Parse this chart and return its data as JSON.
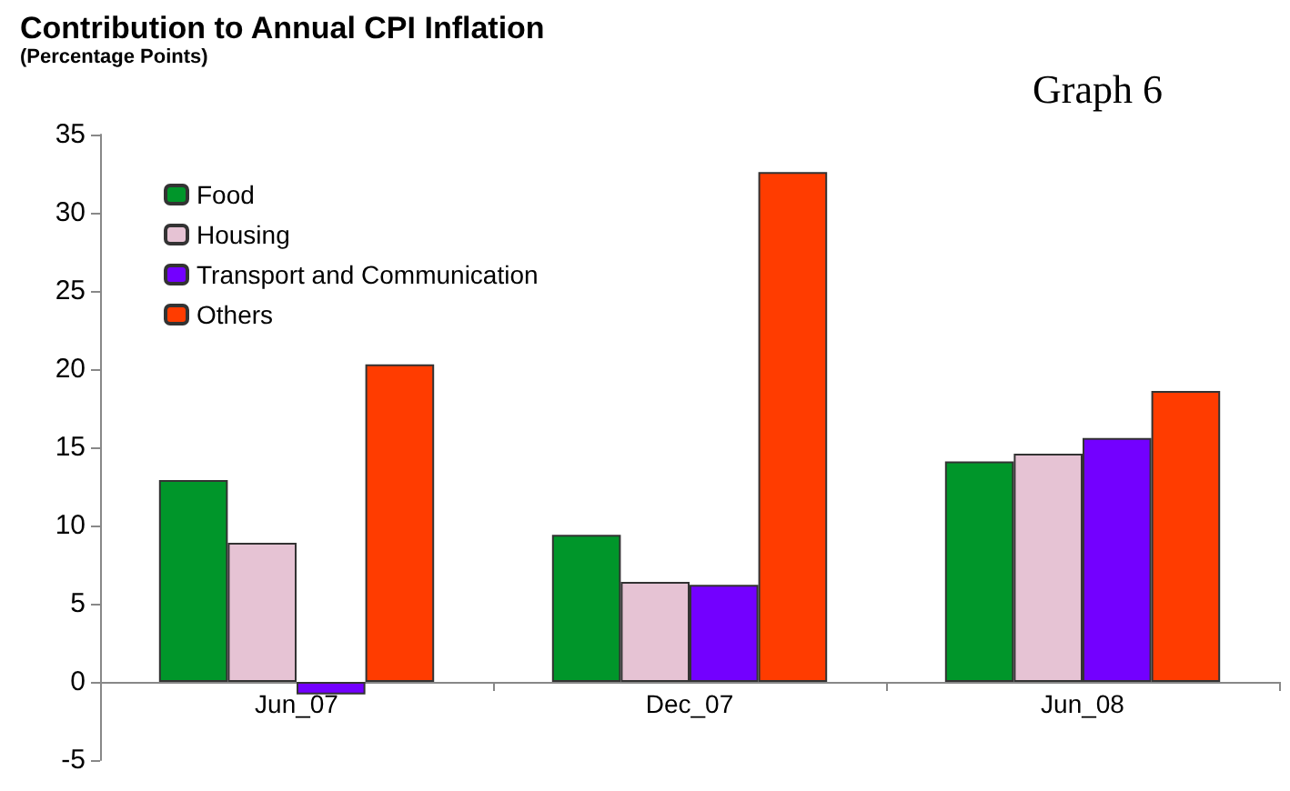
{
  "chart_data": {
    "type": "bar",
    "title": "Contribution to Annual CPI Inflation",
    "subtitle": "(Percentage Points)",
    "annotations": [
      "Graph 6"
    ],
    "categories": [
      "Jun_07",
      "Dec_07",
      "Jun_08"
    ],
    "series": [
      {
        "name": "Food",
        "color": "#00962a",
        "values": [
          12.9,
          9.4,
          14.1
        ]
      },
      {
        "name": "Housing",
        "color": "#e6c3d4",
        "values": [
          8.9,
          6.4,
          14.6
        ]
      },
      {
        "name": "Transport and Communication",
        "color": "#7300ff",
        "values": [
          -0.8,
          6.2,
          15.6
        ]
      },
      {
        "name": "Others",
        "color": "#ff3c00",
        "values": [
          20.3,
          32.6,
          18.6
        ]
      }
    ],
    "ylim": [
      -5,
      35
    ],
    "yticks": [
      -5,
      0,
      5,
      10,
      15,
      20,
      25,
      30,
      35
    ],
    "grid": false,
    "legend": "top left"
  }
}
